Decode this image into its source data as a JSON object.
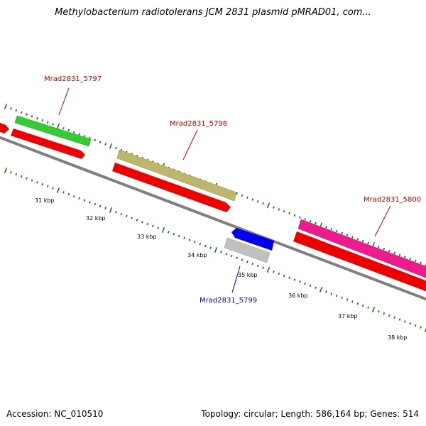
{
  "title": "Methylobacterium radiotolerans JCM 2831 plasmid pMRAD01, com...",
  "footer": {
    "accession": "Accession: NC_010510",
    "summary": "Topology: circular; Length: 586,164 bp; Genes: 514"
  },
  "scale_labels": [
    "31 kbp",
    "32 kbp",
    "33 kbp",
    "34 kbp",
    "35 kbp",
    "36 kbp",
    "37 kbp",
    "38 kbp"
  ],
  "gene_labels": [
    {
      "name": "Mrad2831_5797",
      "color": "#cc0000"
    },
    {
      "name": "Mrad2831_5798",
      "color": "#cc0000"
    },
    {
      "name": "Mrad2831_5799",
      "color": "#0000cc"
    },
    {
      "name": "Mrad2831_5800",
      "color": "#cc0000"
    }
  ],
  "colors": {
    "backbone": "#808080",
    "tick": "#1a7a1a",
    "cds_track": "#ee0000",
    "gene_5797": "#33cc33",
    "gene_5798": "#bdb76b",
    "gene_5799": "#0000ee",
    "gene_5799_cds": "#c0c0c0",
    "gene_5800": "#ee1b8c"
  }
}
